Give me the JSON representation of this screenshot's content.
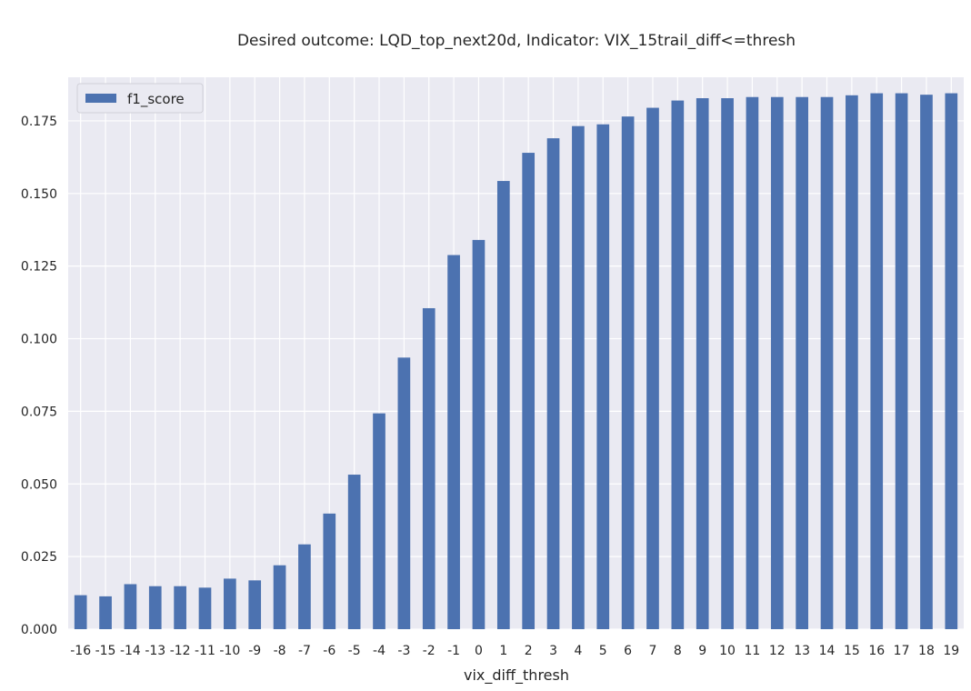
{
  "chart_data": {
    "type": "bar",
    "title": "Desired outcome: LQD_top_next20d, Indicator: VIX_15trail_diff<=thresh",
    "xlabel": "vix_diff_thresh",
    "ylabel": "",
    "ylim": [
      0,
      0.19
    ],
    "yticks": [
      "0.000",
      "0.025",
      "0.050",
      "0.075",
      "0.100",
      "0.125",
      "0.150",
      "0.175"
    ],
    "categories": [
      "-16",
      "-15",
      "-14",
      "-13",
      "-12",
      "-11",
      "-10",
      "-9",
      "-8",
      "-7",
      "-6",
      "-5",
      "-4",
      "-3",
      "-2",
      "-1",
      "0",
      "1",
      "2",
      "3",
      "4",
      "5",
      "6",
      "7",
      "8",
      "9",
      "10",
      "11",
      "12",
      "13",
      "14",
      "15",
      "16",
      "17",
      "18",
      "19"
    ],
    "series": [
      {
        "name": "f1_score",
        "color": "#4c72b0",
        "values": [
          0.0117,
          0.0113,
          0.0155,
          0.0148,
          0.0148,
          0.0143,
          0.0174,
          0.0168,
          0.022,
          0.0292,
          0.0398,
          0.0532,
          0.0743,
          0.0935,
          0.1105,
          0.1288,
          0.134,
          0.1543,
          0.164,
          0.169,
          0.1732,
          0.1738,
          0.1765,
          0.1795,
          0.182,
          0.1828,
          0.1828,
          0.1832,
          0.1832,
          0.1832,
          0.1832,
          0.1838,
          0.1845,
          0.1845,
          0.184,
          0.1845
        ]
      }
    ],
    "legend_position": "top-left",
    "grid": true,
    "background": "#eaeaf2",
    "grid_color": "#ffffff"
  }
}
